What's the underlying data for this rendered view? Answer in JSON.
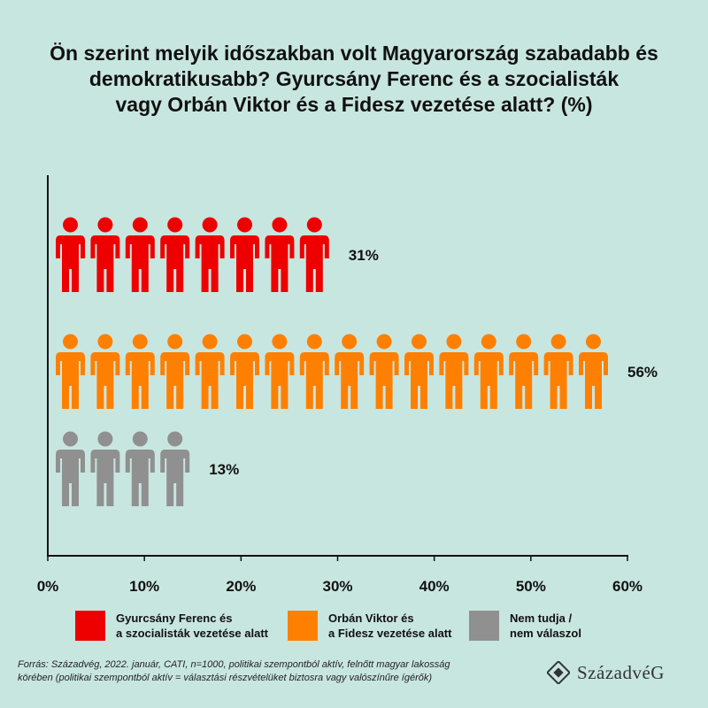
{
  "title_lines": [
    "Ön szerint melyik időszakban volt Magyarország szabadabb és",
    "demokratikusabb? Gyurcsány Ferenc és a szocialisták",
    "vagy Orbán Viktor és a Fidesz vezetése alatt? (%)"
  ],
  "chart_data": {
    "type": "bar",
    "orientation": "horizontal",
    "mark": "person-icons",
    "categories": [
      "Gyurcsány Ferenc és a szocialisták vezetése alatt",
      "Orbán Viktor és a Fidesz vezetése alatt",
      "Nem tudja / nem válaszol"
    ],
    "values": [
      31,
      56,
      13
    ],
    "value_labels": [
      "31%",
      "56%",
      "13%"
    ],
    "icon_counts": [
      8,
      16,
      4
    ],
    "colors": [
      "#ee0000",
      "#ff8000",
      "#909090"
    ],
    "xlim": [
      0,
      60
    ],
    "xticks": [
      0,
      10,
      20,
      30,
      40,
      50,
      60
    ],
    "xtick_labels": [
      "0%",
      "10%",
      "20%",
      "30%",
      "40%",
      "50%",
      "60%"
    ],
    "grid": false,
    "legend": "bottom"
  },
  "legend": [
    {
      "line1": "Gyurcsány Ferenc és",
      "line2": "a szocialisták vezetése alatt",
      "color": "#ee0000"
    },
    {
      "line1": "Orbán Viktor és",
      "line2": "a Fidesz vezetése alatt",
      "color": "#ff8000"
    },
    {
      "line1": "Nem tudja /",
      "line2": "nem válaszol",
      "color": "#909090"
    }
  ],
  "source_lines": [
    "Forrás: Századvég, 2022. január, CATI, n=1000, politikai szempontból aktív, felnőtt magyar lakosság",
    "körében (politikai szempontból aktív = választási részvételüket biztosra vagy valószínűre ígérők)"
  ],
  "logo": {
    "text": "SzázadvéG",
    "icon": "diamond-logo-icon"
  }
}
